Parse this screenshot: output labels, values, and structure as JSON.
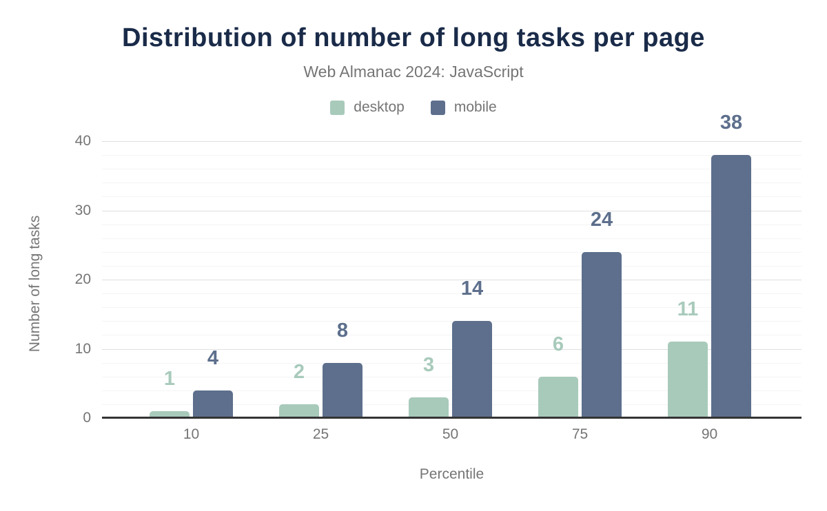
{
  "colors": {
    "title": "#1a2b49",
    "muted_text": "#757575",
    "axis_line": "#333333",
    "grid_major": "#dfdfdf",
    "grid_minor": "#f4f4f4",
    "background": "#ffffff",
    "desktop": "#a8cabb",
    "mobile": "#5d6f8c"
  },
  "chart_data": {
    "type": "bar",
    "title": "Distribution of number of long tasks per page",
    "subtitle": "Web Almanac 2024: JavaScript",
    "categories": [
      "10",
      "25",
      "50",
      "75",
      "90"
    ],
    "series": [
      {
        "name": "desktop",
        "color": "#a8cabb",
        "values": [
          1,
          2,
          3,
          6,
          11
        ]
      },
      {
        "name": "mobile",
        "color": "#5d6f8c",
        "values": [
          4,
          8,
          14,
          24,
          38
        ]
      }
    ],
    "xlabel": "Percentile",
    "ylabel": "Number of long tasks",
    "ylim": [
      0,
      40
    ],
    "yticks": [
      0,
      10,
      20,
      30,
      40
    ],
    "minor_gridline_step": 2,
    "grid": "horizontal, major lines every 10 with faint minor lines every 2",
    "legend_position": "top-center",
    "value_labels": "above each bar, bold, colored to match its series"
  }
}
